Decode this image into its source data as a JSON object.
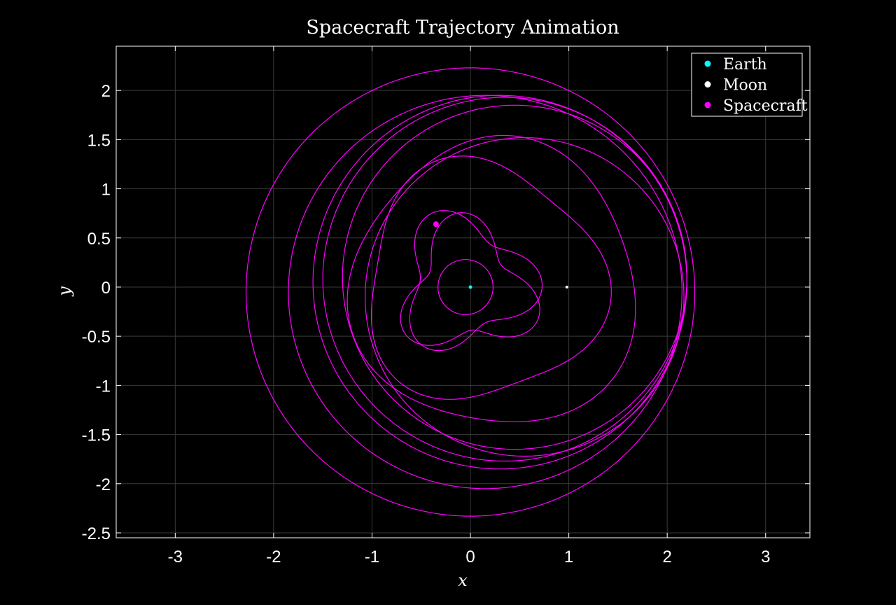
{
  "chart_data": {
    "type": "line",
    "title": "Spacecraft Trajectory Animation",
    "xlabel": "x",
    "ylabel": "y",
    "xlim": [
      -3.6,
      3.45
    ],
    "ylim": [
      -2.55,
      2.45
    ],
    "xticks": [
      -3,
      -2,
      -1,
      0,
      1,
      2,
      3
    ],
    "xtick_labels": [
      "-3",
      "-2",
      "-1",
      "0",
      "1",
      "2",
      "3"
    ],
    "yticks": [
      -2.5,
      -2,
      -1.5,
      -1,
      -0.5,
      0,
      0.5,
      1,
      1.5,
      2
    ],
    "ytick_labels": [
      "-2.5",
      "-2",
      "-1.5",
      "-1",
      "-0.5",
      "0",
      "0.5",
      "1",
      "1.5",
      "2"
    ],
    "grid": true,
    "background": "#000000",
    "legend_position": "top-right",
    "series": [
      {
        "name": "Earth",
        "kind": "marker",
        "color": "#00ffff",
        "points": [
          [
            0,
            0
          ]
        ]
      },
      {
        "name": "Moon",
        "kind": "marker",
        "color": "#ffffff",
        "points": [
          [
            0.98,
            0.0
          ]
        ]
      },
      {
        "name": "Spacecraft",
        "kind": "marker",
        "color": "#ff00ff",
        "points": [
          [
            -0.35,
            0.64
          ]
        ]
      }
    ],
    "trajectory": {
      "color": "#ff00ff",
      "description_kind": "precessing looping orbit",
      "loops": [
        {
          "cx": -0.05,
          "cy": 0.0,
          "r": 0.28,
          "amp": 0.0,
          "k": 0,
          "rot": 0
        },
        {
          "cx": -0.05,
          "cy": 0.05,
          "r": 0.62,
          "amp": 0.16,
          "k": 3,
          "rot": 0.2
        },
        {
          "cx": -0.03,
          "cy": -0.02,
          "r": 0.6,
          "amp": 0.18,
          "k": 3,
          "rot": 1.25
        },
        {
          "cx": 0.12,
          "cy": 0.05,
          "r": 1.2,
          "amp": 0.12,
          "k": 3,
          "rot": 0.5
        },
        {
          "cx": 0.25,
          "cy": 0.02,
          "r": 1.45,
          "amp": 0.08,
          "k": 3,
          "rot": 2.1
        },
        {
          "cx": 0.55,
          "cy": -0.1,
          "r": 1.62,
          "amp": 0.0,
          "k": 0,
          "rot": 0
        },
        {
          "cx": 0.45,
          "cy": 0.1,
          "r": 1.75,
          "amp": 0.0,
          "k": 0,
          "rot": 0
        },
        {
          "cx": 0.35,
          "cy": 0.08,
          "r": 1.85,
          "amp": 0.0,
          "k": 0,
          "rot": 0
        },
        {
          "cx": 0.3,
          "cy": 0.05,
          "r": 1.9,
          "amp": 0.0,
          "k": 0,
          "rot": 0
        },
        {
          "cx": 0.15,
          "cy": -0.05,
          "r": 2.0,
          "amp": 0.0,
          "k": 0,
          "rot": 0
        },
        {
          "cx": 0.0,
          "cy": -0.05,
          "r": 2.28,
          "amp": 0.0,
          "k": 0,
          "rot": 0
        }
      ]
    }
  }
}
